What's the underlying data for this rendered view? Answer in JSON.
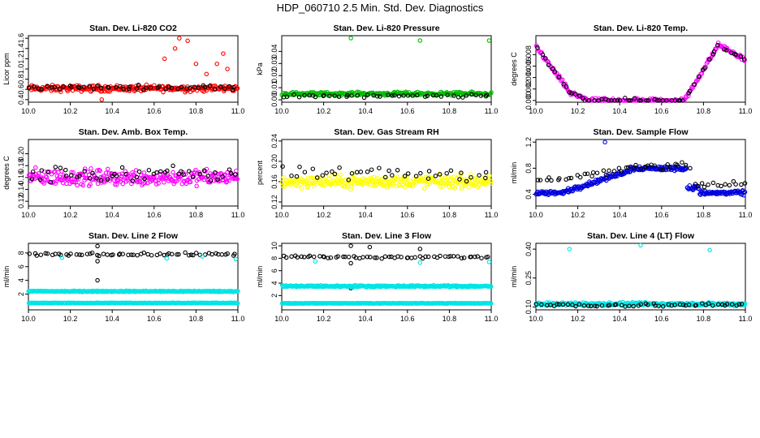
{
  "figure_title": "HDP_060710  2.5 Min. Std. Dev. Diagnostics",
  "chart_data": [
    {
      "type": "scatter",
      "title": "Stan. Dev. Li-820 CO2",
      "ylabel": "Licor ppm",
      "xlim": [
        10.0,
        11.0
      ],
      "ylim": [
        0.35,
        1.65
      ],
      "xticks": [
        "10.0",
        "10.2",
        "10.4",
        "10.6",
        "10.8",
        "11.0"
      ],
      "yticks": [
        "0.4",
        "0.6",
        "0.8",
        "1.0",
        "1.2",
        "1.4",
        "1.6"
      ],
      "series": [
        {
          "name": "main",
          "color": "#ff0000",
          "density": 260,
          "base": 0.62,
          "noise": 0.09,
          "spikes": [
            [
              10.65,
              1.2
            ],
            [
              10.7,
              1.4
            ],
            [
              10.72,
              1.6
            ],
            [
              10.76,
              1.55
            ],
            [
              10.8,
              1.1
            ],
            [
              10.85,
              0.9
            ],
            [
              10.9,
              1.1
            ],
            [
              10.93,
              1.3
            ],
            [
              10.95,
              1.0
            ],
            [
              10.35,
              0.4
            ]
          ]
        },
        {
          "name": "secondary",
          "color": "#000000",
          "density": 50,
          "base": 0.64,
          "noise": 0.06,
          "spikes": []
        }
      ]
    },
    {
      "type": "scatter",
      "title": "Stan. Dev. Li-820 Pressure",
      "ylabel": "kPa",
      "xlim": [
        10.0,
        11.0
      ],
      "ylim": [
        -0.002,
        0.053
      ],
      "xticks": [
        "10.0",
        "10.2",
        "10.4",
        "10.6",
        "10.8",
        "11.0"
      ],
      "yticks": [
        "0.00",
        "0.01",
        "0.02",
        "0.03",
        "0.04"
      ],
      "series": [
        {
          "name": "main",
          "color": "#00bb00",
          "density": 260,
          "base": 0.005,
          "noise": 0.002,
          "spikes": [
            [
              10.33,
              0.051
            ],
            [
              10.66,
              0.049
            ],
            [
              10.99,
              0.049
            ]
          ]
        },
        {
          "name": "secondary",
          "color": "#000000",
          "density": 45,
          "base": 0.003,
          "noise": 0.002,
          "spikes": []
        }
      ]
    },
    {
      "type": "scatter",
      "title": "Stan. Dev. Li-820 Temp.",
      "ylabel": "degrees C",
      "xlim": [
        10.0,
        11.0
      ],
      "ylim": [
        -0.0003,
        0.0113
      ],
      "xticks": [
        "10.0",
        "10.2",
        "10.4",
        "10.6",
        "10.8",
        "11.0"
      ],
      "yticks": [
        "0.000",
        "0.002",
        "0.004",
        "0.006",
        "0.008"
      ],
      "series": [
        {
          "name": "main",
          "color": "#ff00ff",
          "density": 230,
          "base": 0.0,
          "noise": 0.0006,
          "profile": "temp",
          "spikes": []
        },
        {
          "name": "secondary",
          "color": "#000000",
          "density": 60,
          "base": 0.0,
          "noise": 0.0005,
          "profile": "temp",
          "spikes": []
        }
      ]
    },
    {
      "type": "scatter",
      "title": "Stan. Dev. Amb. Box Temp.",
      "ylabel": "degrees C",
      "xlim": [
        10.0,
        11.0
      ],
      "ylim": [
        0.112,
        0.224
      ],
      "xticks": [
        "10.0",
        "10.2",
        "10.4",
        "10.6",
        "10.8",
        "11.0"
      ],
      "yticks": [
        "0.12",
        "0.14",
        "0.16",
        "0.18",
        "0.20"
      ],
      "series": [
        {
          "name": "main",
          "color": "#ff00ff",
          "density": 280,
          "base": 0.16,
          "noise": 0.02,
          "spikes": []
        },
        {
          "name": "secondary",
          "color": "#000000",
          "density": 50,
          "base": 0.165,
          "noise": 0.02,
          "spikes": []
        }
      ]
    },
    {
      "type": "scatter",
      "title": "Stan. Dev. Gas Stream RH",
      "ylabel": "percent",
      "xlim": [
        10.0,
        11.0
      ],
      "ylim": [
        0.112,
        0.243
      ],
      "xticks": [
        "10.0",
        "10.2",
        "10.4",
        "10.6",
        "10.8",
        "11.0"
      ],
      "yticks": [
        "0.12",
        "0.16",
        "0.20",
        "0.24"
      ],
      "series": [
        {
          "name": "main",
          "color": "#ffff00",
          "density": 300,
          "base": 0.16,
          "noise": 0.018,
          "spikes": []
        },
        {
          "name": "secondary",
          "color": "#000000",
          "density": 40,
          "base": 0.175,
          "noise": 0.02,
          "spikes": []
        }
      ]
    },
    {
      "type": "scatter",
      "title": "Stan. Dev. Sample Flow",
      "ylabel": "ml/min",
      "xlim": [
        10.0,
        11.0
      ],
      "ylim": [
        0.22,
        1.24
      ],
      "xticks": [
        "10.0",
        "10.2",
        "10.4",
        "10.6",
        "10.8",
        "11.0"
      ],
      "yticks": [
        "0.4",
        "0.8",
        "1.2"
      ],
      "series": [
        {
          "name": "main",
          "color": "#0000dd",
          "density": 300,
          "base": 0.45,
          "noise": 0.05,
          "profile": "flow",
          "spikes": [
            [
              10.33,
              1.2
            ]
          ]
        },
        {
          "name": "secondary",
          "color": "#000000",
          "density": 55,
          "base": 0.6,
          "noise": 0.08,
          "profile": "flow2",
          "spikes": []
        }
      ]
    },
    {
      "type": "scatter",
      "title": "Stan. Dev. Line 2 Flow",
      "ylabel": "ml/min",
      "xlim": [
        10.0,
        11.0
      ],
      "ylim": [
        -0.3,
        9.4
      ],
      "xticks": [
        "10.0",
        "10.2",
        "10.4",
        "10.6",
        "10.8",
        "11.0"
      ],
      "yticks": [
        "2",
        "4",
        "6",
        "8"
      ],
      "series": [
        {
          "name": "upper",
          "color": "#000000",
          "density": 60,
          "base": 7.8,
          "noise": 0.3,
          "spikes": [
            [
              10.33,
              4.0
            ],
            [
              10.33,
              6.8
            ],
            [
              10.33,
              9.0
            ]
          ]
        },
        {
          "name": "mid",
          "color": "#00e5e5",
          "density": 320,
          "base": 2.4,
          "noise": 0.12,
          "spikes": [
            [
              10.16,
              7.3
            ],
            [
              10.66,
              7.2
            ],
            [
              10.83,
              7.5
            ],
            [
              10.99,
              7.1
            ]
          ]
        },
        {
          "name": "low",
          "color": "#00e5e5",
          "density": 320,
          "base": 0.7,
          "noise": 0.05,
          "spikes": []
        }
      ]
    },
    {
      "type": "scatter",
      "title": "Stan. Dev. Line 3 Flow",
      "ylabel": "ml/min",
      "xlim": [
        10.0,
        11.0
      ],
      "ylim": [
        -0.3,
        10.4
      ],
      "xticks": [
        "10.0",
        "10.2",
        "10.4",
        "10.6",
        "10.8",
        "11.0"
      ],
      "yticks": [
        "2",
        "4",
        "6",
        "8",
        "10"
      ],
      "series": [
        {
          "name": "upper",
          "color": "#000000",
          "density": 60,
          "base": 8.2,
          "noise": 0.35,
          "spikes": [
            [
              10.33,
              3.2
            ],
            [
              10.33,
              7.2
            ],
            [
              10.33,
              10.0
            ],
            [
              10.42,
              9.8
            ],
            [
              10.66,
              9.5
            ]
          ]
        },
        {
          "name": "mid",
          "color": "#00e5e5",
          "density": 320,
          "base": 3.5,
          "noise": 0.2,
          "spikes": [
            [
              10.16,
              7.5
            ],
            [
              10.66,
              7.3
            ],
            [
              10.99,
              7.4
            ]
          ]
        },
        {
          "name": "low",
          "color": "#00e5e5",
          "density": 320,
          "base": 0.75,
          "noise": 0.06,
          "spikes": []
        }
      ]
    },
    {
      "type": "scatter",
      "title": "Stan. Dev. Line 4 (LT) Flow",
      "ylabel": "ml/min",
      "xlim": [
        10.0,
        11.0
      ],
      "ylim": [
        0.085,
        0.43
      ],
      "xticks": [
        "10.0",
        "10.2",
        "10.4",
        "10.6",
        "10.8",
        "11.0"
      ],
      "yticks": [
        "0.10",
        "0.25",
        "0.40"
      ],
      "series": [
        {
          "name": "main",
          "color": "#00e5e5",
          "density": 320,
          "base": 0.115,
          "noise": 0.012,
          "spikes": [
            [
              10.16,
              0.4
            ],
            [
              10.5,
              0.42
            ],
            [
              10.83,
              0.395
            ]
          ]
        },
        {
          "name": "secondary",
          "color": "#000000",
          "density": 55,
          "base": 0.11,
          "noise": 0.014,
          "spikes": []
        }
      ]
    }
  ]
}
